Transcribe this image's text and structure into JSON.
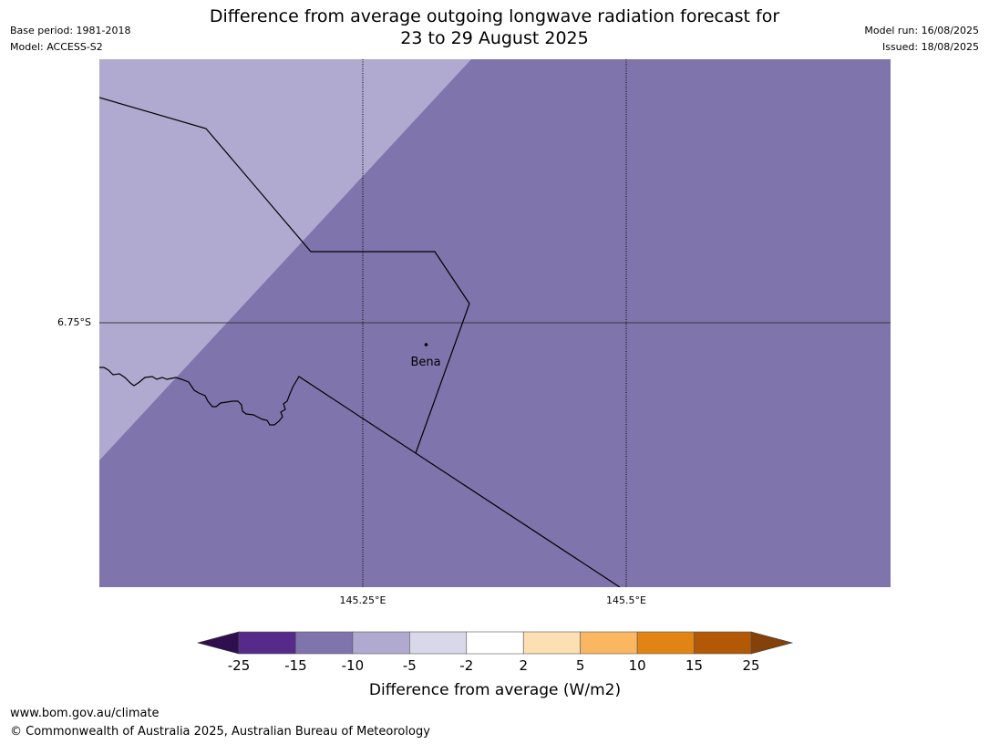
{
  "header": {
    "title_line1": "Difference from average outgoing longwave radiation forecast for",
    "title_line2": "23 to 29 August 2025",
    "base_period": "Base period: 1981-2018",
    "model": "Model: ACCESS-S2",
    "model_run": "Model run: 16/08/2025",
    "issued": "Issued: 18/08/2025"
  },
  "map": {
    "latitude_labels": [
      "6.75°S"
    ],
    "longitude_labels": [
      "145.25°E",
      "145.5°E"
    ],
    "place": {
      "name": "Bena"
    },
    "region_colors": {
      "bin_-10_-5": "#b0a9d0",
      "bin_-15_-10": "#8074ac"
    }
  },
  "colorbar": {
    "title": "Difference from average (W/m2)",
    "ticks": [
      "-25",
      "-15",
      "-10",
      "-5",
      "-2",
      "2",
      "5",
      "10",
      "15",
      "25"
    ],
    "bins": [
      {
        "from": "-25",
        "to": "-15",
        "color": "#562a8a"
      },
      {
        "from": "-15",
        "to": "-10",
        "color": "#8074ac"
      },
      {
        "from": "-10",
        "to": "-5",
        "color": "#b0a9d0"
      },
      {
        "from": "-5",
        "to": "-2",
        "color": "#d9d8e9"
      },
      {
        "from": "-2",
        "to": "2",
        "color": "#ffffff"
      },
      {
        "from": "2",
        "to": "5",
        "color": "#fddfb4"
      },
      {
        "from": "5",
        "to": "10",
        "color": "#fbb661"
      },
      {
        "from": "10",
        "to": "15",
        "color": "#e18414"
      },
      {
        "from": "15",
        "to": "25",
        "color": "#b25807"
      }
    ],
    "under_color": "#2f0f4f",
    "over_color": "#84420a"
  },
  "footer": {
    "url": "www.bom.gov.au/climate",
    "copyright": "© Commonwealth of Australia 2025, Australian Bureau of Meteorology"
  }
}
